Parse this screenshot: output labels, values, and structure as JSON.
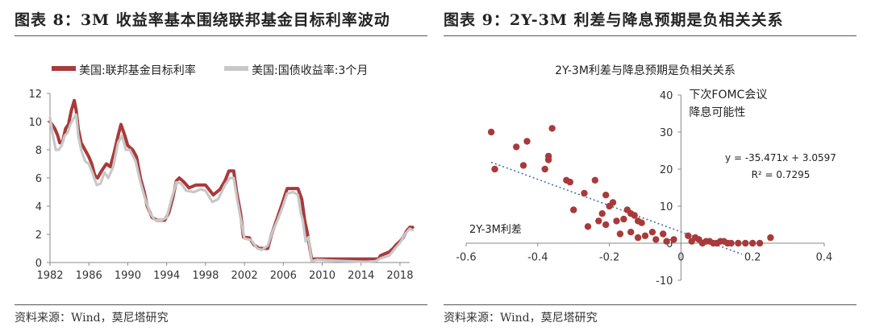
{
  "figures": [
    {
      "title": "图表 8：3M 收益率基本围绕联邦基金目标利率波动",
      "source": "资料来源：Wind，莫尼塔研究"
    },
    {
      "title": "图表 9：2Y-3M 利差与降息预期是负相关关系",
      "source": "资料来源：Wind，莫尼塔研究"
    }
  ],
  "chart_data": [
    {
      "type": "line",
      "title": "",
      "legend_position": "top-left",
      "x_tick_labels": [
        "1982",
        "1986",
        "1990",
        "1994",
        "1998",
        "2002",
        "2006",
        "2010",
        "2014",
        "2018"
      ],
      "y_tick_labels": [
        "0",
        "2",
        "4",
        "6",
        "8",
        "10",
        "12"
      ],
      "xlim": [
        1982,
        2019
      ],
      "ylim": [
        0,
        12
      ],
      "grid": false,
      "series": [
        {
          "name": "美国:联邦基金目标利率",
          "color": "#a93a3a",
          "points": [
            [
              1982.0,
              10.0
            ],
            [
              1982.5,
              9.5
            ],
            [
              1982.8,
              9.0
            ],
            [
              1983.0,
              8.5
            ],
            [
              1983.3,
              8.6
            ],
            [
              1983.6,
              9.5
            ],
            [
              1983.9,
              9.8
            ],
            [
              1984.2,
              10.8
            ],
            [
              1984.5,
              11.5
            ],
            [
              1984.7,
              10.8
            ],
            [
              1984.9,
              9.5
            ],
            [
              1985.2,
              8.5
            ],
            [
              1985.6,
              8.0
            ],
            [
              1986.0,
              7.5
            ],
            [
              1986.3,
              7.0
            ],
            [
              1986.6,
              6.2
            ],
            [
              1986.9,
              6.0
            ],
            [
              1987.3,
              6.5
            ],
            [
              1987.8,
              7.0
            ],
            [
              1988.2,
              6.8
            ],
            [
              1988.6,
              7.8
            ],
            [
              1989.0,
              9.0
            ],
            [
              1989.3,
              9.8
            ],
            [
              1989.7,
              9.0
            ],
            [
              1990.0,
              8.3
            ],
            [
              1990.5,
              8.0
            ],
            [
              1990.9,
              7.5
            ],
            [
              1991.3,
              6.0
            ],
            [
              1991.7,
              5.0
            ],
            [
              1992.0,
              4.0
            ],
            [
              1992.5,
              3.2
            ],
            [
              1993.0,
              3.0
            ],
            [
              1993.8,
              3.0
            ],
            [
              1994.2,
              3.5
            ],
            [
              1994.6,
              4.5
            ],
            [
              1995.0,
              5.8
            ],
            [
              1995.3,
              6.0
            ],
            [
              1995.8,
              5.7
            ],
            [
              1996.3,
              5.3
            ],
            [
              1997.0,
              5.5
            ],
            [
              1998.0,
              5.5
            ],
            [
              1998.8,
              4.8
            ],
            [
              1999.5,
              5.2
            ],
            [
              2000.0,
              5.8
            ],
            [
              2000.4,
              6.5
            ],
            [
              2000.9,
              6.5
            ],
            [
              2001.2,
              5.0
            ],
            [
              2001.6,
              3.5
            ],
            [
              2001.9,
              1.8
            ],
            [
              2002.5,
              1.75
            ],
            [
              2003.0,
              1.25
            ],
            [
              2003.5,
              1.0
            ],
            [
              2004.4,
              1.0
            ],
            [
              2004.8,
              2.0
            ],
            [
              2005.3,
              3.0
            ],
            [
              2005.8,
              4.0
            ],
            [
              2006.4,
              5.25
            ],
            [
              2007.5,
              5.25
            ],
            [
              2007.9,
              4.5
            ],
            [
              2008.2,
              3.0
            ],
            [
              2008.5,
              2.0
            ],
            [
              2008.9,
              0.25
            ],
            [
              2009.5,
              0.25
            ],
            [
              2015.8,
              0.25
            ],
            [
              2016.0,
              0.5
            ],
            [
              2016.9,
              0.75
            ],
            [
              2017.3,
              1.0
            ],
            [
              2017.6,
              1.25
            ],
            [
              2018.0,
              1.5
            ],
            [
              2018.3,
              1.75
            ],
            [
              2018.7,
              2.25
            ],
            [
              2019.0,
              2.5
            ],
            [
              2019.3,
              2.5
            ]
          ]
        },
        {
          "name": "美国:国债收益率:3个月",
          "color": "#c8c8c8",
          "points": [
            [
              1982.0,
              10.3
            ],
            [
              1982.3,
              9.0
            ],
            [
              1982.6,
              8.0
            ],
            [
              1982.9,
              8.0
            ],
            [
              1983.2,
              8.3
            ],
            [
              1983.5,
              9.0
            ],
            [
              1983.8,
              9.2
            ],
            [
              1984.1,
              9.8
            ],
            [
              1984.4,
              10.2
            ],
            [
              1984.7,
              10.5
            ],
            [
              1984.9,
              9.0
            ],
            [
              1985.2,
              8.0
            ],
            [
              1985.6,
              7.2
            ],
            [
              1986.0,
              7.0
            ],
            [
              1986.4,
              6.3
            ],
            [
              1986.8,
              5.5
            ],
            [
              1987.2,
              5.6
            ],
            [
              1987.6,
              6.4
            ],
            [
              1988.0,
              6.0
            ],
            [
              1988.5,
              6.8
            ],
            [
              1989.0,
              8.5
            ],
            [
              1989.4,
              9.0
            ],
            [
              1989.8,
              8.0
            ],
            [
              1990.2,
              8.0
            ],
            [
              1990.8,
              7.2
            ],
            [
              1991.3,
              5.7
            ],
            [
              1991.8,
              4.5
            ],
            [
              1992.3,
              3.5
            ],
            [
              1992.8,
              3.0
            ],
            [
              1993.5,
              3.0
            ],
            [
              1994.0,
              3.2
            ],
            [
              1994.5,
              4.5
            ],
            [
              1995.0,
              5.7
            ],
            [
              1995.5,
              5.6
            ],
            [
              1996.0,
              5.1
            ],
            [
              1996.8,
              5.0
            ],
            [
              1997.5,
              5.2
            ],
            [
              1998.0,
              5.1
            ],
            [
              1998.7,
              4.3
            ],
            [
              1999.3,
              4.5
            ],
            [
              2000.0,
              5.5
            ],
            [
              2000.5,
              6.0
            ],
            [
              2000.9,
              6.0
            ],
            [
              2001.3,
              4.3
            ],
            [
              2001.7,
              2.8
            ],
            [
              2002.0,
              1.7
            ],
            [
              2002.7,
              1.6
            ],
            [
              2003.3,
              1.0
            ],
            [
              2003.8,
              0.9
            ],
            [
              2004.4,
              1.2
            ],
            [
              2004.9,
              2.2
            ],
            [
              2005.4,
              3.0
            ],
            [
              2005.9,
              3.9
            ],
            [
              2006.4,
              4.9
            ],
            [
              2007.0,
              5.0
            ],
            [
              2007.5,
              4.8
            ],
            [
              2007.8,
              3.5
            ],
            [
              2008.0,
              3.0
            ],
            [
              2008.3,
              1.5
            ],
            [
              2008.6,
              1.8
            ],
            [
              2008.9,
              0.1
            ],
            [
              2009.5,
              0.2
            ],
            [
              2010.5,
              0.15
            ],
            [
              2012.5,
              0.1
            ],
            [
              2014.5,
              0.05
            ],
            [
              2015.5,
              0.1
            ],
            [
              2016.0,
              0.3
            ],
            [
              2016.9,
              0.5
            ],
            [
              2017.5,
              1.0
            ],
            [
              2018.0,
              1.4
            ],
            [
              2018.5,
              2.0
            ],
            [
              2019.0,
              2.4
            ],
            [
              2019.3,
              2.3
            ]
          ]
        }
      ]
    },
    {
      "type": "scatter",
      "title": "2Y-3M利差与降息预期是负相关关系",
      "xlabel": "2Y-3M利差",
      "ylabel": "下次FOMC会议降息可能性",
      "ylabel_lines": [
        "下次FOMC会议",
        "降息可能性"
      ],
      "x_tick_labels": [
        "-0.6",
        "-0.4",
        "-0.2",
        "0",
        "0.2",
        "0.4"
      ],
      "y_tick_labels": [
        "-10",
        "0",
        "10",
        "20",
        "30",
        "40"
      ],
      "xlim": [
        -0.6,
        0.4
      ],
      "ylim": [
        -10,
        40
      ],
      "grid": false,
      "marker_color": "#a93a3a",
      "trendline": {
        "equation": "y = -35.471x + 3.0597",
        "r_squared": "R² = 0.7295",
        "slope": -35.471,
        "intercept": 3.0597,
        "x_range": [
          -0.53,
          0.17
        ],
        "color": "#4a6fa5"
      },
      "points": [
        [
          -0.53,
          30
        ],
        [
          -0.52,
          20
        ],
        [
          -0.46,
          26
        ],
        [
          -0.43,
          27.5
        ],
        [
          -0.36,
          31
        ],
        [
          -0.37,
          23.5
        ],
        [
          -0.37,
          22.5
        ],
        [
          -0.38,
          20
        ],
        [
          -0.44,
          21
        ],
        [
          -0.32,
          17
        ],
        [
          -0.31,
          16.5
        ],
        [
          -0.24,
          17
        ],
        [
          -0.27,
          13.5
        ],
        [
          -0.21,
          13
        ],
        [
          -0.2,
          10
        ],
        [
          -0.19,
          11
        ],
        [
          -0.15,
          9
        ],
        [
          -0.14,
          8
        ],
        [
          -0.13,
          7.5
        ],
        [
          -0.16,
          6.5
        ],
        [
          -0.22,
          8
        ],
        [
          -0.23,
          6
        ],
        [
          -0.18,
          6
        ],
        [
          -0.12,
          6
        ],
        [
          -0.11,
          5.5
        ],
        [
          -0.3,
          9
        ],
        [
          -0.26,
          4.5
        ],
        [
          -0.21,
          5
        ],
        [
          -0.14,
          3
        ],
        [
          -0.17,
          2.5
        ],
        [
          -0.08,
          3
        ],
        [
          -0.1,
          2
        ],
        [
          -0.12,
          1.5
        ],
        [
          -0.07,
          1
        ],
        [
          -0.04,
          0.5
        ],
        [
          -0.02,
          1
        ],
        [
          -0.05,
          2.5
        ],
        [
          0.02,
          2
        ],
        [
          0.03,
          0.5
        ],
        [
          0.05,
          1
        ],
        [
          0.06,
          0
        ],
        [
          0.08,
          0.5
        ],
        [
          0.1,
          0
        ],
        [
          0.12,
          0.5
        ],
        [
          0.14,
          0
        ],
        [
          0.16,
          0
        ],
        [
          0.18,
          0
        ],
        [
          0.2,
          0
        ],
        [
          0.22,
          0
        ],
        [
          0.25,
          1.5
        ],
        [
          0.04,
          1.5
        ],
        [
          0.07,
          0.5
        ],
        [
          0.09,
          0
        ],
        [
          0.11,
          0.5
        ],
        [
          0.13,
          0
        ]
      ]
    }
  ]
}
